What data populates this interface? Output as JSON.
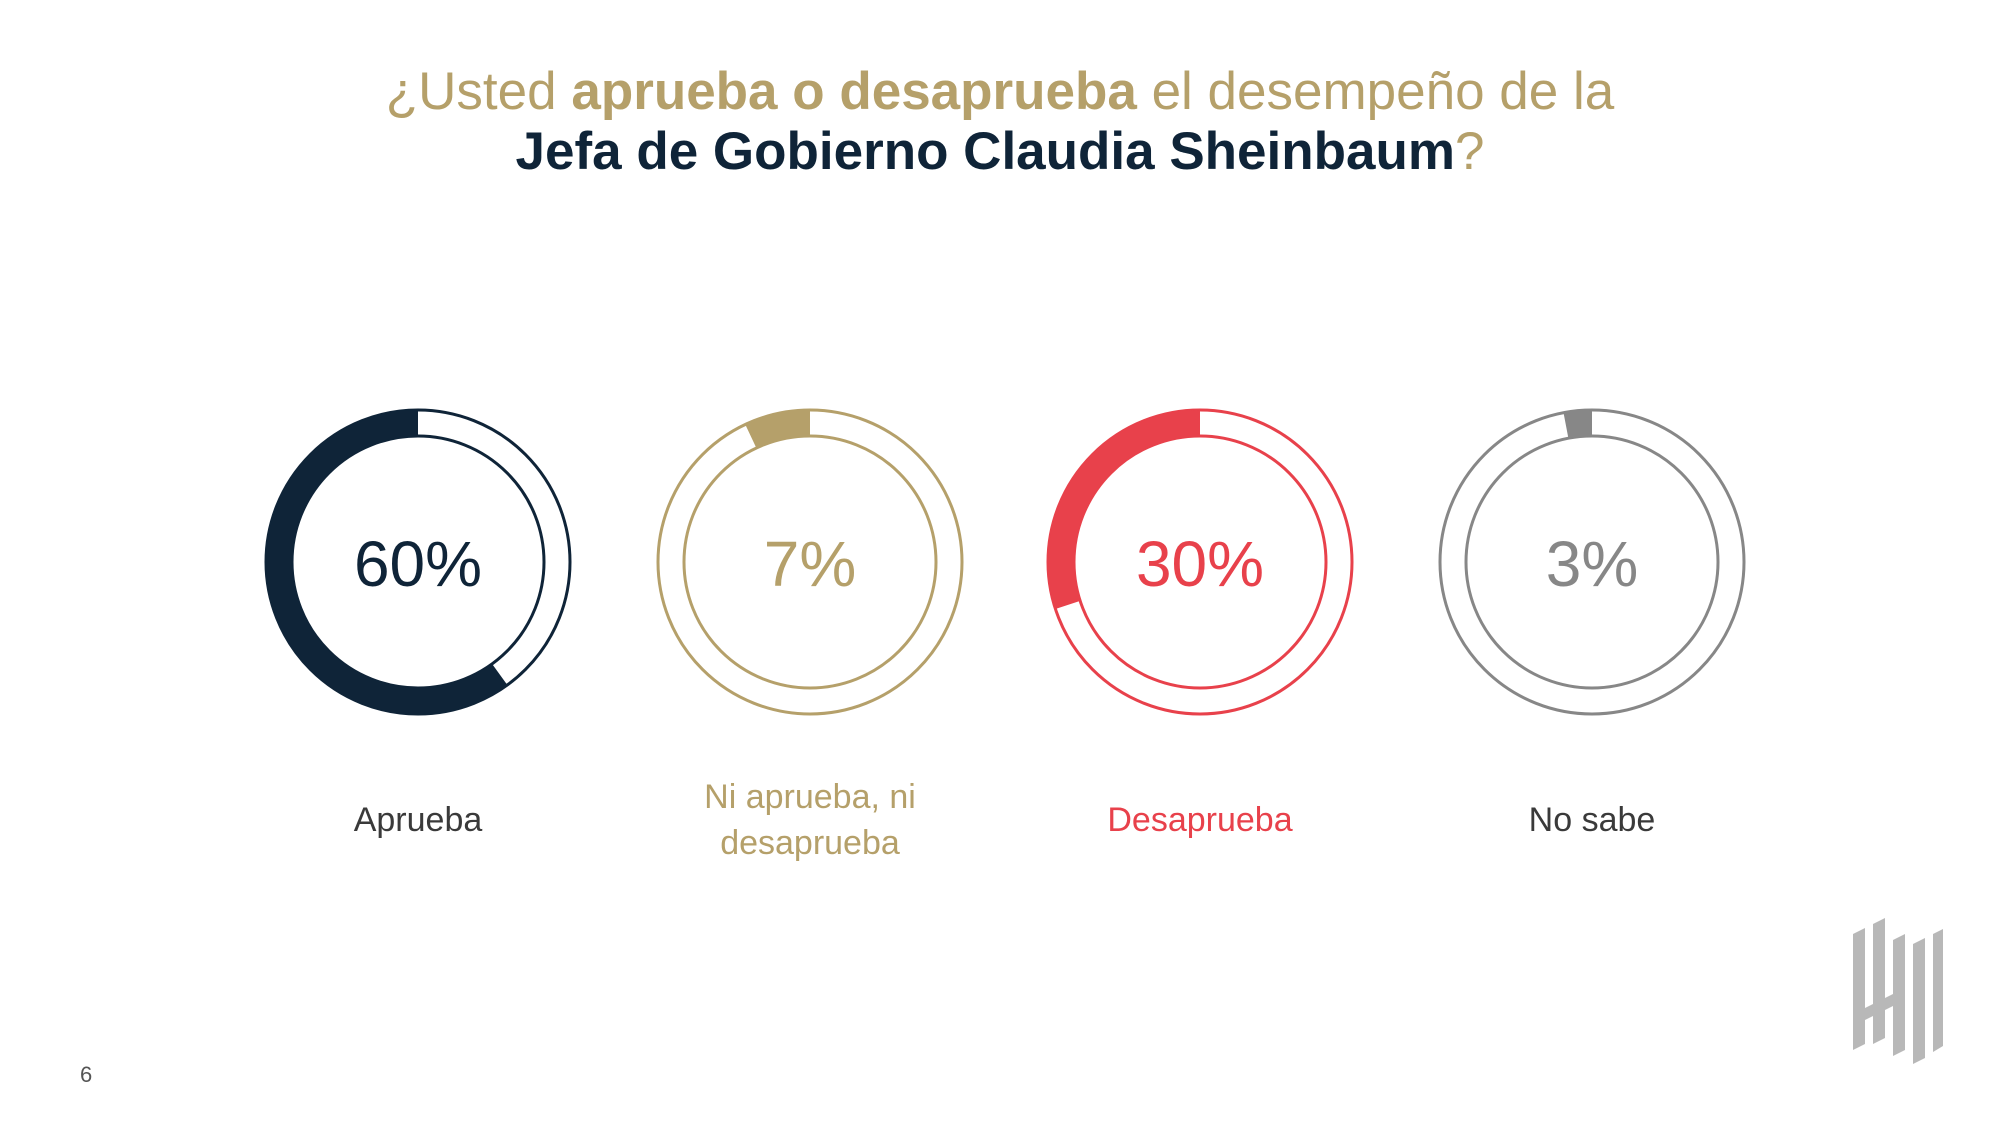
{
  "title": {
    "line1_part1": "¿Usted ",
    "line1_bold": "aprueba o desaprueba",
    "line1_part2": " el desempeño de la",
    "line2_bold": "Jefa de Gobierno Claudia Sheinbaum",
    "line2_end": "?"
  },
  "chart_data": {
    "type": "pie",
    "variant": "donut-multiples",
    "series": [
      {
        "name": "Aprueba",
        "value": 60,
        "label": "60%",
        "color": "#0f2438"
      },
      {
        "name": "Ni aprueba, ni desaprueba",
        "value": 7,
        "label": "7%",
        "color": "#b5a06a"
      },
      {
        "name": "Desaprueba",
        "value": 30,
        "label": "30%",
        "color": "#e8414b"
      },
      {
        "name": "No sabe",
        "value": 3,
        "label": "3%",
        "color": "#878787"
      }
    ],
    "unit": "%"
  },
  "page": {
    "number": "6"
  },
  "colors": {
    "navy": "#0f2438",
    "gold": "#b5a06a",
    "red": "#e8414b",
    "gray": "#878787",
    "label_dark": "#3a3a3a"
  },
  "logo": {
    "icon": "brand-logo-icon"
  }
}
